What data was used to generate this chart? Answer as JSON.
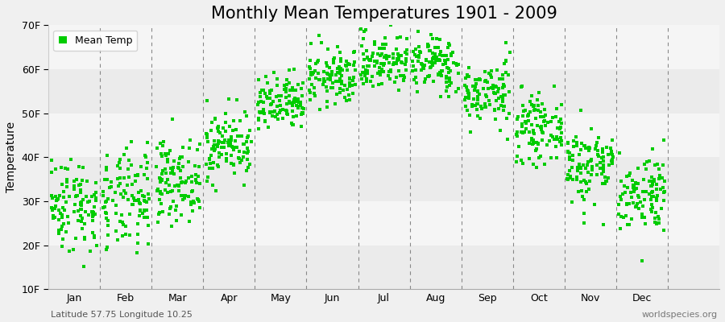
{
  "title": "Monthly Mean Temperatures 1901 - 2009",
  "ylabel": "Temperature",
  "months": [
    "Jan",
    "Feb",
    "Mar",
    "Apr",
    "May",
    "Jun",
    "Jul",
    "Aug",
    "Sep",
    "Oct",
    "Nov",
    "Dec"
  ],
  "ylim": [
    10,
    70
  ],
  "yticks": [
    10,
    20,
    30,
    40,
    50,
    60,
    70
  ],
  "ytick_labels": [
    "10F",
    "20F",
    "30F",
    "40F",
    "50F",
    "60F",
    "70F"
  ],
  "dot_color": "#00cc00",
  "dot_size": 6,
  "title_fontsize": 15,
  "axis_fontsize": 10,
  "tick_fontsize": 9,
  "legend_label": "Mean Temp",
  "subtitle_left": "Latitude 57.75 Longitude 10.25",
  "subtitle_right": "worldspecies.org",
  "monthly_mean_C": [
    -1.5,
    -1.2,
    1.5,
    6.0,
    11.0,
    14.5,
    16.5,
    16.2,
    12.5,
    8.0,
    3.5,
    0.0
  ],
  "monthly_std_C": [
    3.0,
    3.2,
    2.5,
    2.2,
    1.8,
    1.8,
    1.8,
    1.8,
    2.0,
    2.0,
    2.5,
    2.5
  ],
  "n_years": 109,
  "seed": 42,
  "band_colors_even": "#ebebeb",
  "band_colors_odd": "#f5f5f5",
  "fig_bg": "#f0f0f0"
}
